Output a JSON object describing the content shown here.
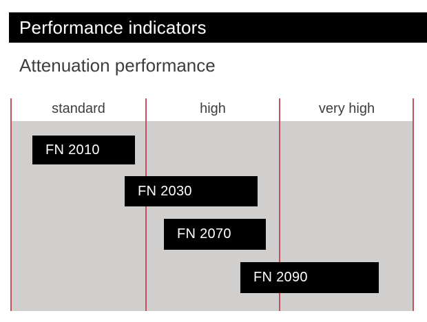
{
  "header": {
    "title": "Performance indicators"
  },
  "section": {
    "title": "Attenuation performance"
  },
  "colors": {
    "header_background": "#000000",
    "header_text": "#ffffff",
    "subtitle_text": "#3d3d3d",
    "plot_background": "#d0cfcd",
    "grid_line_accent": "#c0505a",
    "bar_fill": "#000000",
    "bar_text": "#ffffff",
    "column_label_text": "#3d3d3d"
  },
  "chart_data": {
    "type": "bar",
    "variant": "horizontal-range",
    "title": "Attenuation performance",
    "columns": [
      "standard",
      "high",
      "very high"
    ],
    "bars": [
      {
        "label": "FN 2010",
        "categories_spanned": [
          "standard"
        ],
        "span": [
          0.16,
          0.92
        ]
      },
      {
        "label": "FN 2030",
        "categories_spanned": [
          "standard",
          "high"
        ],
        "span": [
          0.84,
          1.84
        ]
      },
      {
        "label": "FN 2070",
        "categories_spanned": [
          "high"
        ],
        "span": [
          1.13,
          1.9
        ]
      },
      {
        "label": "FN 2090",
        "categories_spanned": [
          "high",
          "very high"
        ],
        "span": [
          1.71,
          2.74
        ]
      }
    ],
    "axis_note": "span units: 0 = left edge of 'standard', 1 = start of 'high', 2 = start of 'very high', 3 = right edge",
    "legend": "none",
    "grid": "vertical category separators only"
  }
}
